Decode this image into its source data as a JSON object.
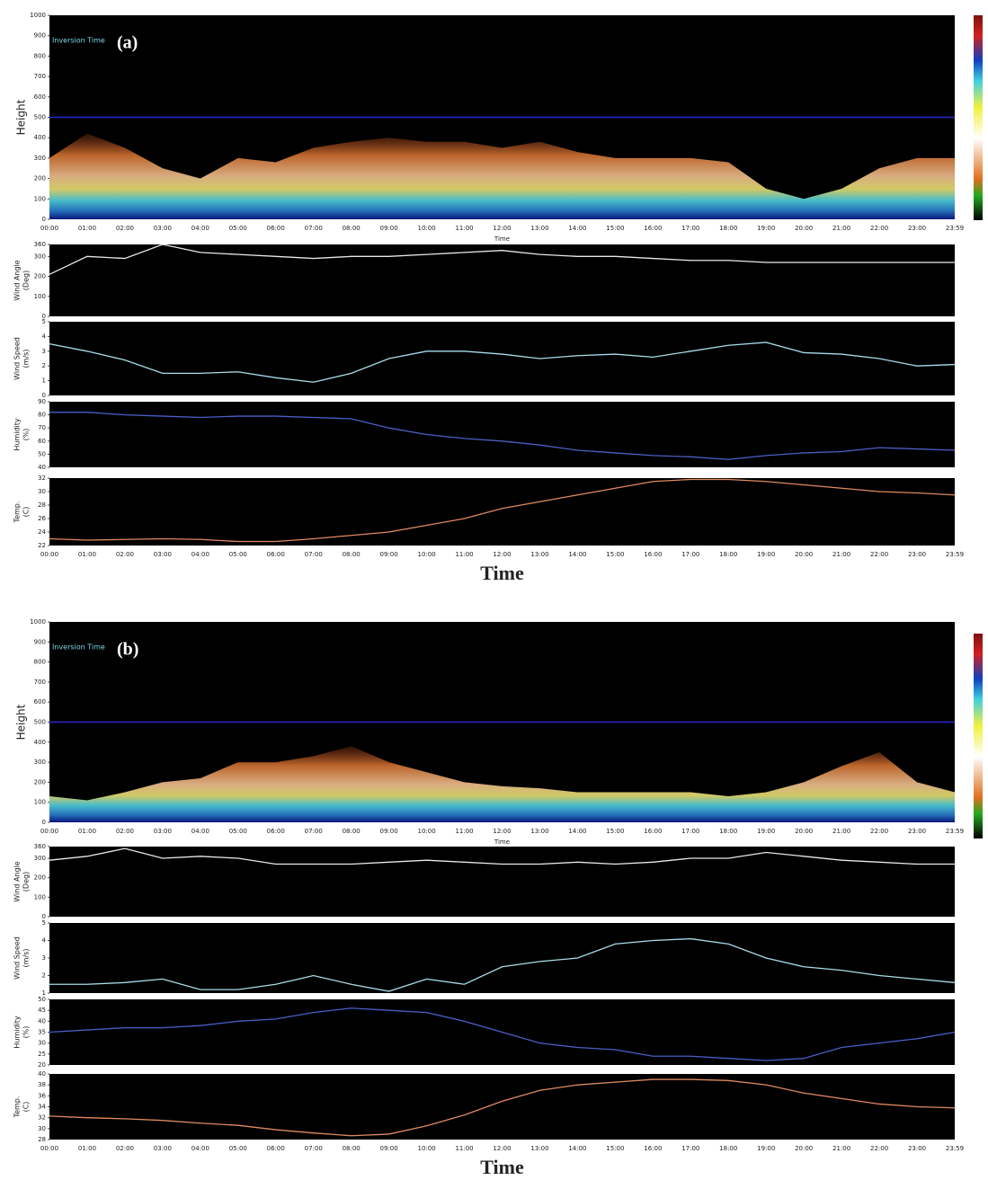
{
  "chart_data": [
    {
      "type": "area",
      "title": "(a)",
      "annotation": "Inversion Time",
      "ylabel": [
        "Height"
      ],
      "xlabel": "Time",
      "categories": [
        "00:00",
        "01:00",
        "02:00",
        "03:00",
        "04:00",
        "05:00",
        "06:00",
        "07:00",
        "08:00",
        "09:00",
        "10:00",
        "11:00",
        "12:00",
        "13:00",
        "14:00",
        "15:00",
        "16:00",
        "17:00",
        "18:00",
        "19:00",
        "20:00",
        "21:00",
        "22:00",
        "23:00",
        "23:59"
      ],
      "values": [
        300,
        420,
        350,
        250,
        200,
        300,
        280,
        350,
        380,
        400,
        380,
        380,
        350,
        380,
        330,
        300,
        300,
        300,
        280,
        150,
        100,
        150,
        250,
        300,
        300
      ],
      "ylim": [
        0,
        1000
      ],
      "yticks": [
        0,
        100,
        200,
        300,
        400,
        500,
        600,
        700,
        800,
        900,
        1000
      ],
      "hline": 500,
      "hline_color": "#2a2ad0"
    },
    {
      "type": "line",
      "ylabel": [
        "Wind Angle",
        "(Deg)"
      ],
      "color": "#e8e8e8",
      "values": [
        210,
        300,
        290,
        360,
        320,
        310,
        300,
        290,
        300,
        300,
        310,
        320,
        330,
        310,
        300,
        300,
        290,
        280,
        280,
        270,
        270,
        270,
        270,
        270,
        270
      ],
      "ylim": [
        0,
        360
      ],
      "yticks": [
        0,
        100,
        200,
        300,
        360
      ]
    },
    {
      "type": "line",
      "ylabel": [
        "Wind Speed",
        "(m/s)"
      ],
      "color": "#a8dcea",
      "values": [
        3.5,
        3.0,
        2.4,
        1.5,
        1.5,
        1.6,
        1.2,
        0.9,
        1.5,
        2.5,
        3.0,
        3.0,
        2.8,
        2.5,
        2.7,
        2.8,
        2.6,
        3.0,
        3.4,
        3.6,
        2.9,
        2.8,
        2.5,
        2.0,
        2.1
      ],
      "ylim": [
        0,
        5
      ],
      "yticks": [
        0,
        1,
        2,
        3,
        4,
        5
      ]
    },
    {
      "type": "line",
      "ylabel": [
        "Humidity",
        "(%)"
      ],
      "color": "#4a5fc8",
      "values": [
        82,
        82,
        80,
        79,
        78,
        79,
        79,
        78,
        77,
        70,
        65,
        62,
        60,
        57,
        53,
        51,
        49,
        48,
        46,
        49,
        51,
        52,
        55,
        54,
        53
      ],
      "ylim": [
        40,
        90
      ],
      "yticks": [
        40,
        50,
        60,
        70,
        80,
        90
      ]
    },
    {
      "type": "line",
      "ylabel": [
        "Temp.",
        "(C)"
      ],
      "color": "#e08a60",
      "xlabel": "Time",
      "categories": [
        "00:00",
        "01:00",
        "02:00",
        "03:00",
        "04:00",
        "05:00",
        "06:00",
        "07:00",
        "08:00",
        "09:00",
        "10:00",
        "11:00",
        "12:00",
        "13:00",
        "14:00",
        "15:00",
        "16:00",
        "17:00",
        "18:00",
        "19:00",
        "20:00",
        "21:00",
        "22:00",
        "23:00",
        "23:59"
      ],
      "values": [
        23,
        22.8,
        22.9,
        23,
        22.9,
        22.6,
        22.6,
        23,
        23.5,
        24,
        25,
        26,
        27.5,
        28.5,
        29.5,
        30.5,
        31.5,
        31.8,
        31.8,
        31.5,
        31,
        30.5,
        30,
        29.8,
        29.5
      ],
      "ylim": [
        22,
        32
      ],
      "yticks": [
        22,
        24,
        26,
        28,
        30,
        32
      ]
    },
    {
      "type": "area",
      "title": "(b)",
      "annotation": "Inversion Time",
      "ylabel": [
        "Height"
      ],
      "xlabel": "Time",
      "categories": [
        "00:00",
        "01:00",
        "02:00",
        "03:00",
        "04:00",
        "05:00",
        "06:00",
        "07:00",
        "08:00",
        "09:00",
        "10:00",
        "11:00",
        "12:00",
        "13:00",
        "14:00",
        "15:00",
        "16:00",
        "17:00",
        "18:00",
        "19:00",
        "20:00",
        "21:00",
        "22:00",
        "23:00",
        "23:59"
      ],
      "values": [
        130,
        110,
        150,
        200,
        220,
        300,
        300,
        330,
        380,
        300,
        250,
        200,
        180,
        170,
        150,
        150,
        150,
        150,
        130,
        150,
        200,
        280,
        350,
        200,
        150
      ],
      "ylim": [
        0,
        1000
      ],
      "yticks": [
        0,
        100,
        200,
        300,
        400,
        500,
        600,
        700,
        800,
        900,
        1000
      ],
      "hline": 500,
      "hline_color": "#2a2ad0"
    },
    {
      "type": "line",
      "ylabel": [
        "Wind Angle",
        "(Deg)"
      ],
      "color": "#e8e8e8",
      "values": [
        290,
        310,
        350,
        300,
        310,
        300,
        270,
        270,
        270,
        280,
        290,
        280,
        270,
        270,
        280,
        270,
        280,
        300,
        300,
        330,
        310,
        290,
        280,
        270,
        270
      ],
      "ylim": [
        0,
        360
      ],
      "yticks": [
        0,
        100,
        200,
        300,
        360
      ]
    },
    {
      "type": "line",
      "ylabel": [
        "Wind Speed",
        "(m/s)"
      ],
      "color": "#a8dcea",
      "values": [
        1.5,
        1.5,
        1.6,
        1.8,
        1.2,
        1.2,
        1.5,
        2.0,
        1.5,
        1.1,
        1.8,
        1.5,
        2.5,
        2.8,
        3.0,
        3.8,
        4.0,
        4.1,
        3.8,
        3.0,
        2.5,
        2.3,
        2.0,
        1.8,
        1.6
      ],
      "ylim": [
        1,
        5
      ],
      "yticks": [
        1,
        2,
        3,
        4,
        5
      ]
    },
    {
      "type": "line",
      "ylabel": [
        "Humidity",
        "(%)"
      ],
      "color": "#4a5fc8",
      "values": [
        35,
        36,
        37,
        37,
        38,
        40,
        41,
        44,
        46,
        45,
        44,
        40,
        35,
        30,
        28,
        27,
        24,
        24,
        23,
        22,
        23,
        28,
        30,
        32,
        35
      ],
      "ylim": [
        20,
        50
      ],
      "yticks": [
        20,
        25,
        30,
        35,
        40,
        45,
        50
      ]
    },
    {
      "type": "line",
      "ylabel": [
        "Temp.",
        "(C)"
      ],
      "color": "#e08a60",
      "xlabel": "Time",
      "categories": [
        "00:00",
        "01:00",
        "02:00",
        "03:00",
        "04:00",
        "05:00",
        "06:00",
        "07:00",
        "08:00",
        "09:00",
        "10:00",
        "11:00",
        "12:00",
        "13:00",
        "14:00",
        "15:00",
        "16:00",
        "17:00",
        "18:00",
        "19:00",
        "20:00",
        "21:00",
        "22:00",
        "23:00",
        "23:59"
      ],
      "values": [
        32.3,
        32,
        31.8,
        31.5,
        31,
        30.6,
        29.8,
        29.2,
        28.7,
        29,
        30.5,
        32.5,
        35,
        37,
        38,
        38.5,
        39,
        39,
        38.8,
        38,
        36.5,
        35.5,
        34.5,
        34,
        33.8
      ],
      "ylim": [
        28,
        40
      ],
      "yticks": [
        28,
        30,
        32,
        34,
        36,
        38,
        40
      ]
    }
  ]
}
